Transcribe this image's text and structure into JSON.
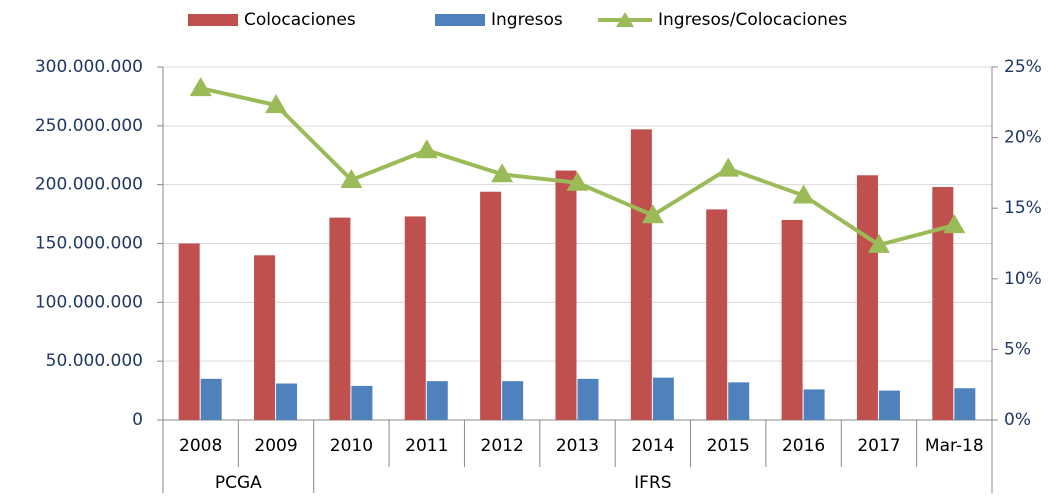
{
  "chart_data": {
    "type": "bar",
    "categories": [
      "2008",
      "2009",
      "2010",
      "2011",
      "2012",
      "2013",
      "2014",
      "2015",
      "2016",
      "2017",
      "Mar-18"
    ],
    "category_groups": [
      "PCGA",
      "PCGA",
      "IFRS",
      "IFRS",
      "IFRS",
      "IFRS",
      "IFRS",
      "IFRS",
      "IFRS",
      "IFRS",
      "IFRS"
    ],
    "series": [
      {
        "name": "Colocaciones",
        "type": "bar",
        "color": "#c0504d",
        "values": [
          150000000,
          140000000,
          172000000,
          173000000,
          194000000,
          212000000,
          247000000,
          179000000,
          170000000,
          208000000,
          198000000
        ]
      },
      {
        "name": "Ingresos",
        "type": "bar",
        "color": "#4f81bd",
        "values": [
          35000000,
          31000000,
          29000000,
          33000000,
          33000000,
          35000000,
          36000000,
          32000000,
          26000000,
          25000000,
          27000000
        ]
      },
      {
        "name": "Ingresos/Colocaciones",
        "type": "line",
        "axis": "y2",
        "color": "#9bbb59",
        "values": [
          23.5,
          22.3,
          17.0,
          19.1,
          17.4,
          16.8,
          14.5,
          17.8,
          15.9,
          12.4,
          13.8
        ]
      }
    ],
    "ylim": [
      0,
      300000000
    ],
    "yticks": [
      0,
      {
        "value": 50000000,
        "label": "50.000.000"
      },
      {
        "value": 100000000,
        "label": "100.000.000"
      },
      {
        "value": 150000000,
        "label": "150.000.000"
      },
      {
        "value": 200000000,
        "label": "200.000.000"
      },
      {
        "value": 250000000,
        "label": "250.000.000"
      },
      {
        "value": 300000000,
        "label": "300.000.000"
      }
    ],
    "y2lim": [
      0,
      25
    ],
    "y2ticks": [
      {
        "value": 0,
        "label": "0%"
      },
      {
        "value": 5,
        "label": "5%"
      },
      {
        "value": 10,
        "label": "10%"
      },
      {
        "value": 15,
        "label": "15%"
      },
      {
        "value": 20,
        "label": "20%"
      },
      {
        "value": 25,
        "label": "25%"
      }
    ],
    "grid": true,
    "legend": "top"
  }
}
